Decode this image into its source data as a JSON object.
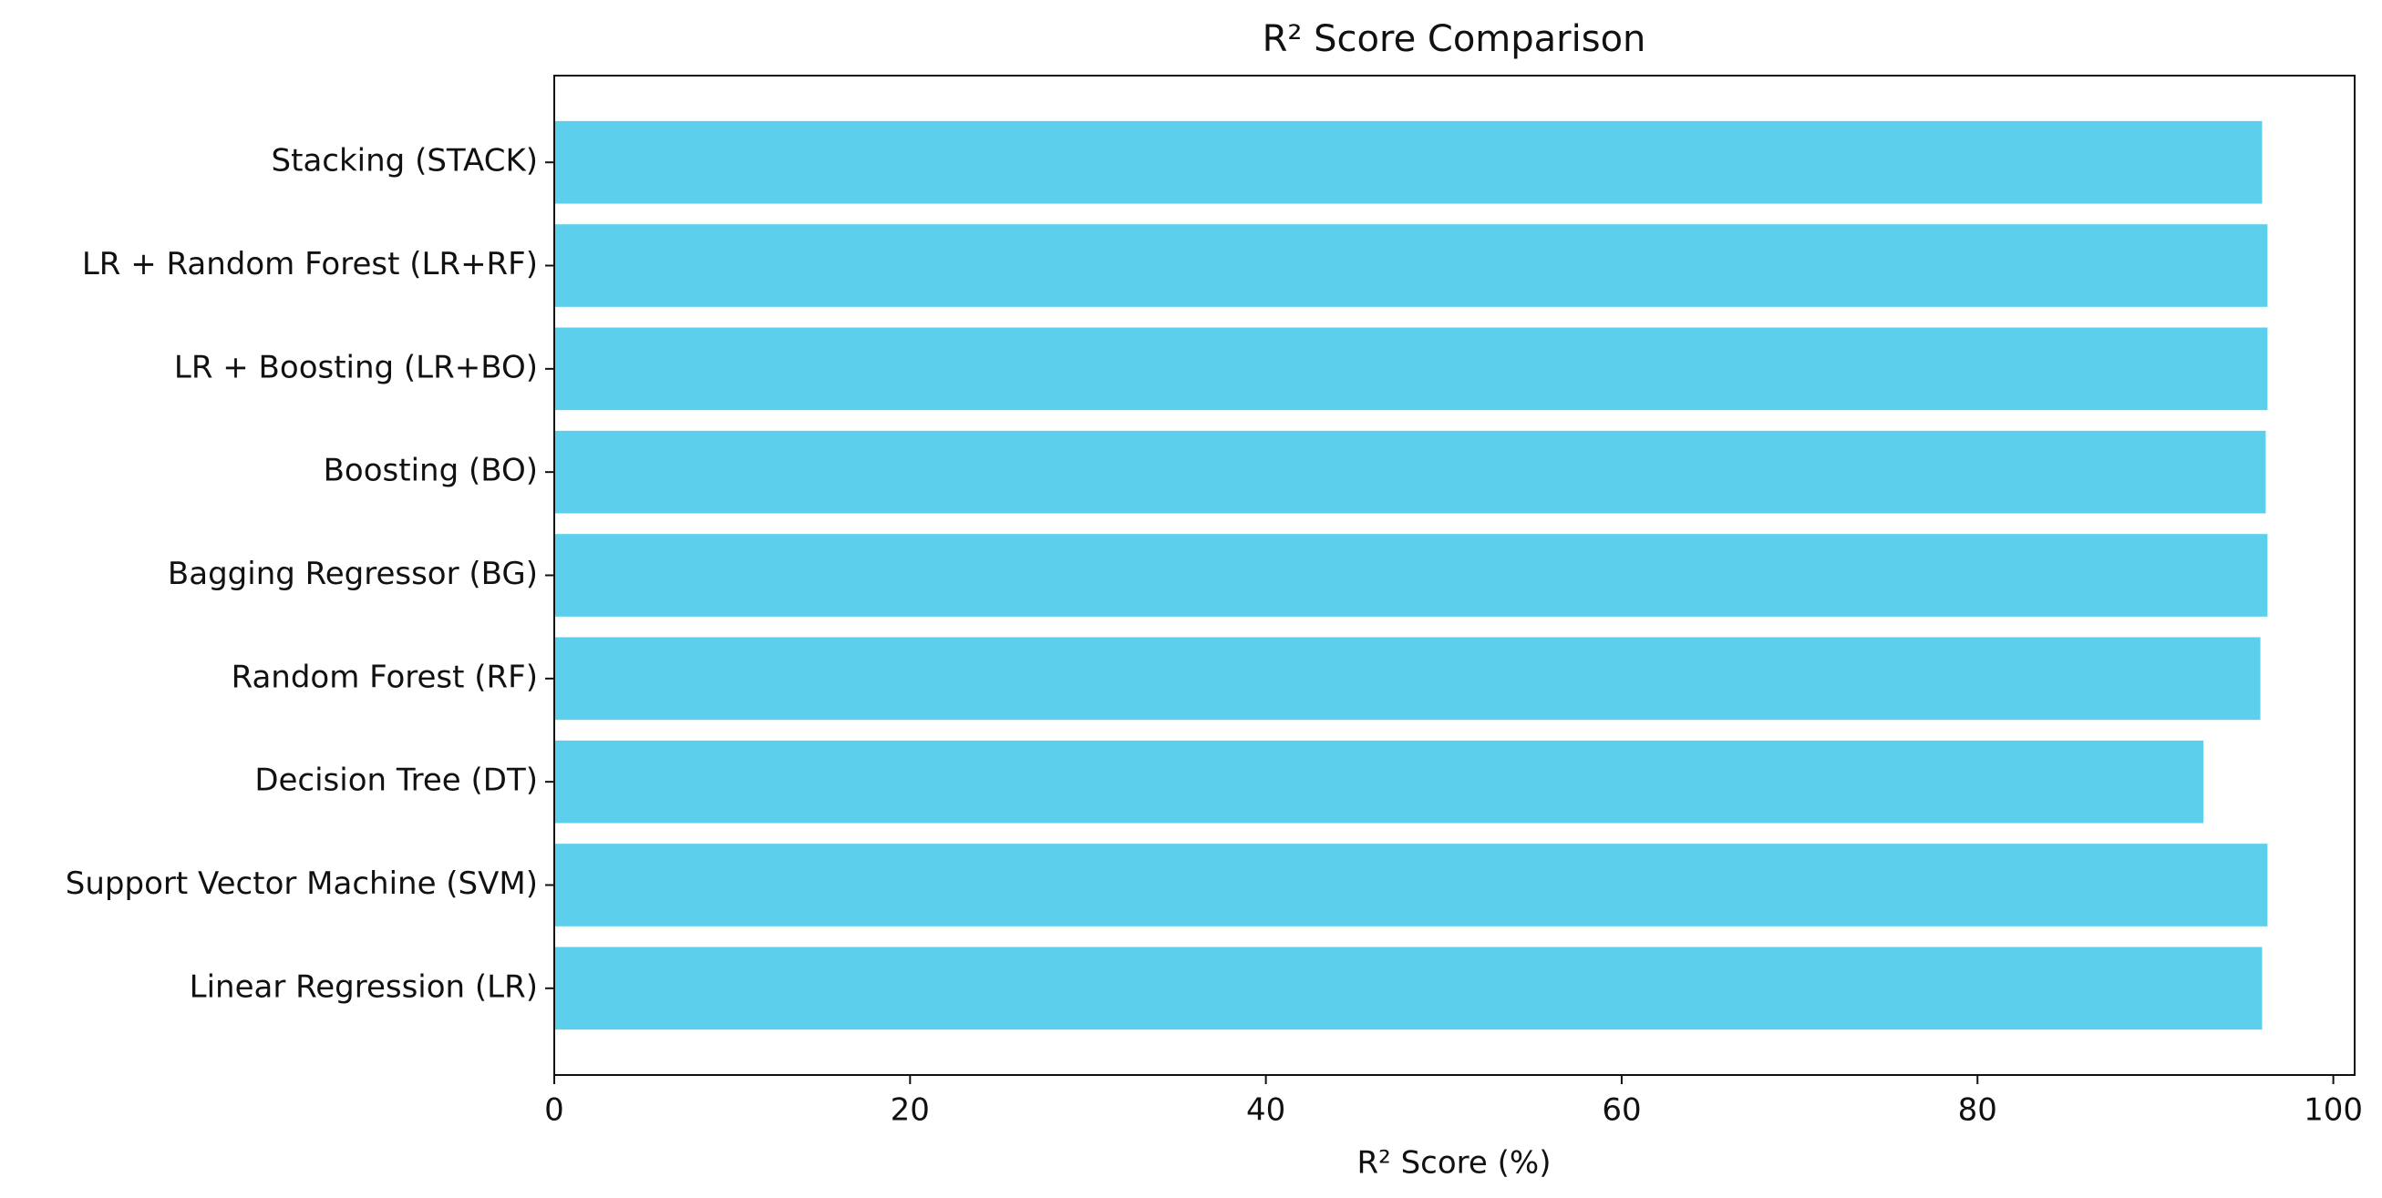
{
  "chart_data": {
    "type": "barh",
    "title": "R² Score Comparison",
    "x_label": "R² Score (%)",
    "categories": [
      "Linear Regression (LR)",
      "Support Vector Machine (SVM)",
      "Decision Tree (DT)",
      "Random Forest (RF)",
      "Bagging Regressor (BG)",
      "Boosting (BO)",
      "LR + Boosting (LR+BO)",
      "LR + Random Forest (LR+RF)",
      "Stacking (STACK)"
    ],
    "values": [
      96.0,
      96.3,
      92.7,
      95.9,
      96.3,
      96.2,
      96.3,
      96.3,
      96.0
    ],
    "color": "#5bcfec",
    "xlim": [
      0,
      101.2
    ],
    "xticks": [
      0,
      20,
      40,
      60,
      80,
      100
    ],
    "grid": false
  }
}
